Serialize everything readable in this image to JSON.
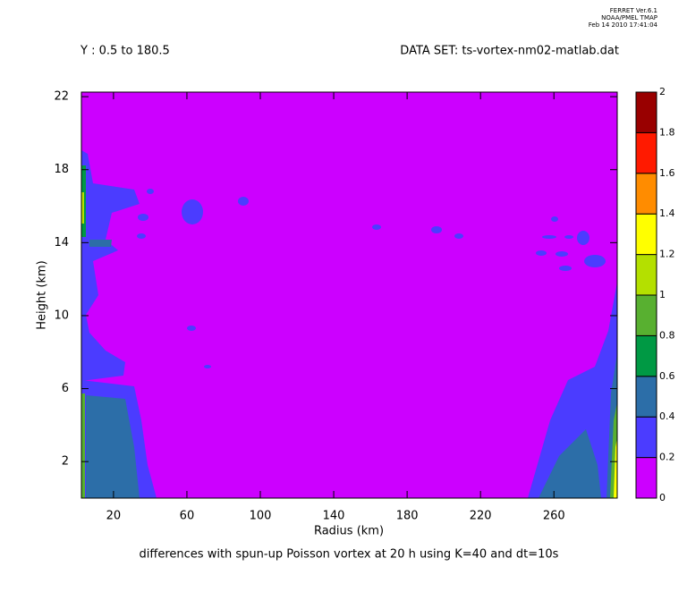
{
  "header": {
    "program": "FERRET  Ver.6.1",
    "org": "NOAA/PMEL TMAP",
    "date": "Feb 14 2010 17:41:04"
  },
  "chart_data": {
    "type": "contour",
    "subtitle_left": "Y : 0.5 to 180.5",
    "subtitle_right": "DATA SET: ts-vortex-nm02-matlab.dat",
    "title": "differences with spun-up Poisson vortex at 20 h using K=40 and dt=10s",
    "x_label": "Radius (km)",
    "y_label": "Height (km)",
    "xlim": [
      2.5,
      294.5
    ],
    "xticks": [
      20,
      60,
      100,
      140,
      180,
      220,
      260
    ],
    "ylim": [
      0,
      22.25
    ],
    "yticks": [
      2,
      6,
      10,
      14,
      18,
      22
    ],
    "colorbar": {
      "levels": [
        0,
        0.2,
        0.4,
        0.6,
        0.8,
        1,
        1.2,
        1.4,
        1.6,
        1.8,
        2
      ],
      "colors": [
        "#cc00ff",
        "#4b3cff",
        "#2c6ea8",
        "#009944",
        "#58b030",
        "#b4e000",
        "#ffff00",
        "#ff8c00",
        "#ff1a00",
        "#990000"
      ]
    }
  }
}
